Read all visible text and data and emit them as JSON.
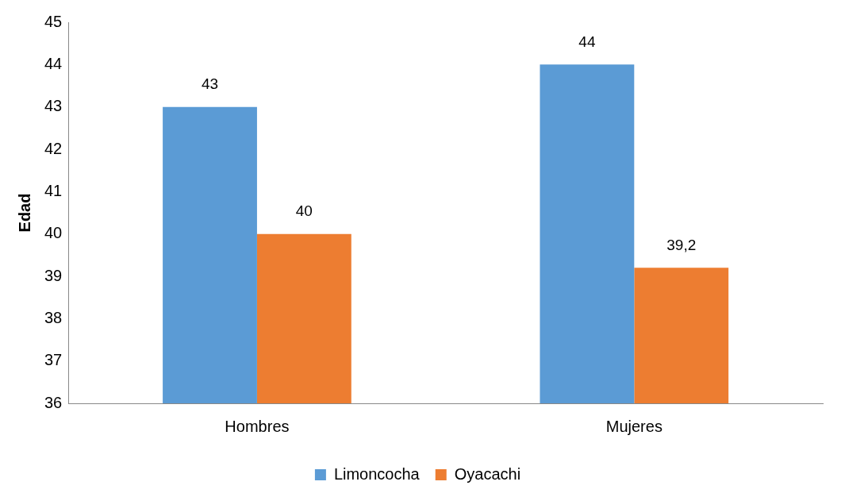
{
  "chart_data": {
    "type": "bar",
    "ylabel": "Edad",
    "categories": [
      "Hombres",
      "Mujeres"
    ],
    "series": [
      {
        "name": "Limoncocha",
        "color": "#5b9bd5",
        "values": [
          43,
          44
        ],
        "value_labels": [
          "43",
          "44"
        ]
      },
      {
        "name": "Oyacachi",
        "color": "#ed7d31",
        "values": [
          40,
          39.2
        ],
        "value_labels": [
          "40",
          "39,2"
        ]
      }
    ],
    "ylim": [
      36,
      45
    ],
    "yticks": [
      36,
      37,
      38,
      39,
      40,
      41,
      42,
      43,
      44,
      45
    ],
    "grid": false,
    "legend": "bottom"
  }
}
